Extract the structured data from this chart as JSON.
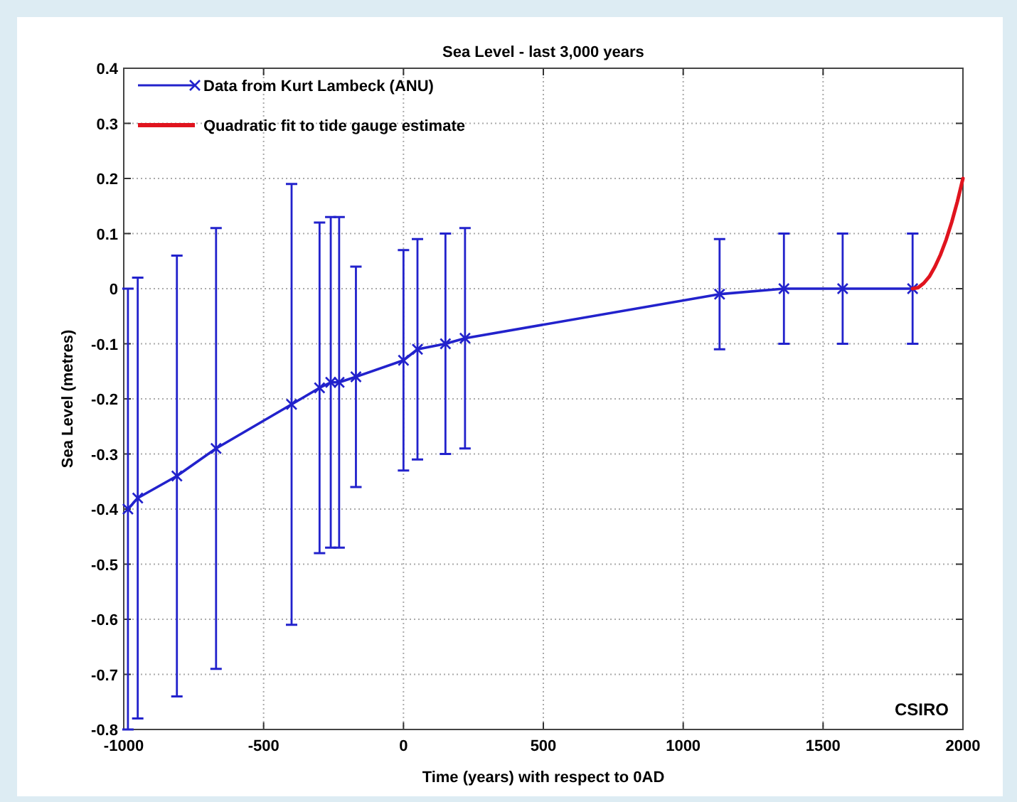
{
  "chart_data": {
    "type": "line",
    "title": "Sea Level - last 3,000 years",
    "xlabel": "Time (years) with respect to 0AD",
    "ylabel": "Sea Level (metres)",
    "annotations": [
      "CSIRO"
    ],
    "xlim": [
      -1000,
      2000
    ],
    "xticks": [
      -1000,
      -500,
      0,
      500,
      1000,
      1500,
      2000
    ],
    "ylim": [
      -0.8,
      0.4
    ],
    "yticks": [
      -0.8,
      -0.7,
      -0.6,
      -0.5,
      -0.4,
      -0.3,
      -0.2,
      -0.1,
      0,
      0.1,
      0.2,
      0.3,
      0.4
    ],
    "grid": true,
    "legend": "top left",
    "line_style": "solid",
    "series": [
      {
        "name": "Data from Kurt Lambeck (ANU)",
        "color": "#2222cc",
        "marker": "cross",
        "x": [
          -985,
          -950,
          -810,
          -670,
          -400,
          -300,
          -260,
          -230,
          -170,
          0,
          50,
          150,
          220,
          1130,
          1360,
          1570,
          1820
        ],
        "values": [
          -0.4,
          -0.38,
          -0.34,
          -0.29,
          -0.21,
          -0.18,
          -0.17,
          -0.17,
          -0.16,
          -0.13,
          -0.11,
          -0.1,
          -0.09,
          -0.01,
          0,
          0,
          0
        ],
        "errors": [
          0.4,
          0.4,
          0.4,
          0.4,
          0.4,
          0.3,
          0.3,
          0.3,
          0.2,
          0.2,
          0.2,
          0.2,
          0.2,
          0.1,
          0.1,
          0.1,
          0.1
        ]
      },
      {
        "name": "Quadratic fit to tide gauge estimate",
        "color": "#e0141e",
        "marker": "none",
        "x": [
          1820,
          1840,
          1860,
          1880,
          1900,
          1920,
          1940,
          1960,
          1980,
          2000
        ],
        "values": [
          0,
          0.002,
          0.01,
          0.022,
          0.04,
          0.062,
          0.089,
          0.121,
          0.158,
          0.2
        ]
      }
    ]
  }
}
